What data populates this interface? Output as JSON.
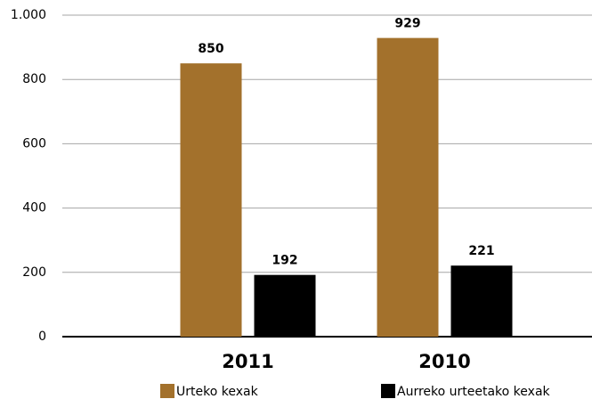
{
  "chart_data": {
    "type": "bar",
    "categories": [
      "2011",
      "2010"
    ],
    "series": [
      {
        "name": "Urteko kexak",
        "color": "#a3712c",
        "values": [
          850,
          929
        ]
      },
      {
        "name": "Aurreko urteetako kexak",
        "color": "#000000",
        "values": [
          192,
          221
        ]
      }
    ],
    "ylim": [
      0,
      1000
    ],
    "yticks": [
      0,
      200,
      400,
      600,
      800,
      {
        "value": 1000,
        "label": "1.000"
      }
    ],
    "grid": true,
    "legend": "bottom"
  }
}
